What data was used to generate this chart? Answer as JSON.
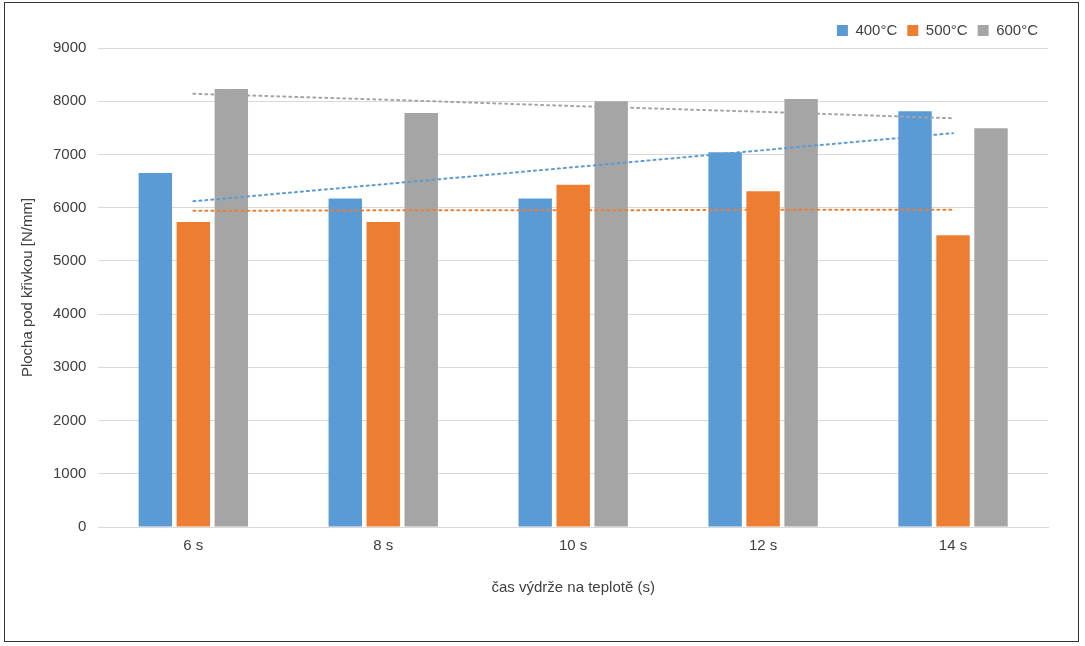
{
  "chart_data": {
    "type": "bar",
    "xlabel": "čas výdrže na teplotě (s)",
    "ylabel": "Plocha pod křivkou [N/mm]",
    "categories": [
      "6 s",
      "8 s",
      "10 s",
      "12 s",
      "14 s"
    ],
    "ylim": [
      0,
      9000
    ],
    "yticks": [
      0,
      1000,
      2000,
      3000,
      4000,
      5000,
      6000,
      7000,
      8000,
      9000
    ],
    "grid": "y",
    "legend": "top right",
    "series": [
      {
        "name": "400°C",
        "color": "#5b9bd5",
        "values": [
          6650,
          6170,
          6170,
          7040,
          7810
        ]
      },
      {
        "name": "500°C",
        "color": "#ed7d31",
        "values": [
          5730,
          5730,
          6430,
          6310,
          5480
        ]
      },
      {
        "name": "600°C",
        "color": "#a5a5a5",
        "values": [
          8230,
          7780,
          8000,
          8040,
          7490
        ]
      },
      {
        "type": "line",
        "line_style": "dotted",
        "color": "#5b9bd5",
        "values": [
          6120,
          6440,
          6760,
          7080,
          7400
        ]
      },
      {
        "type": "line",
        "line_style": "dotted",
        "color": "#ed7d31",
        "values": [
          5940,
          5950,
          5950,
          5960,
          5960
        ]
      },
      {
        "type": "line",
        "line_style": "dotted",
        "color": "#a5a5a5",
        "values": [
          8140,
          8030,
          7910,
          7800,
          7680
        ]
      }
    ]
  }
}
